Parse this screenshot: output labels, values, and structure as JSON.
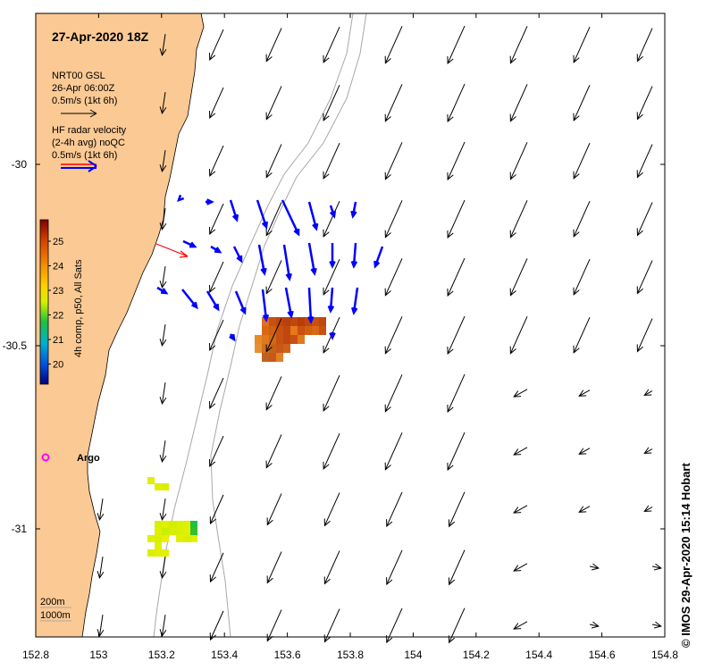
{
  "title": "27-Apr-2020 18Z",
  "legend": {
    "model_name": "NRT00 GSL",
    "model_time": "26-Apr 06:00Z",
    "model_scale": "0.5m/s (1kt 6h)",
    "radar_name": "HF radar velocity",
    "radar_desc": "(2-4h avg) noQC",
    "radar_scale": "0.5m/s (1kt 6h)"
  },
  "colorbar": {
    "label": "4h comp, p50, All Sats",
    "ticks": [
      "25",
      "24",
      "23",
      "22",
      "21",
      "20"
    ]
  },
  "argo": {
    "label": "Argo",
    "color": "#ff00ff"
  },
  "bathymetry": {
    "contour_1": "200m",
    "contour_2": "1000m"
  },
  "axes": {
    "x_ticks": [
      "152.8",
      "153",
      "153.2",
      "153.4",
      "153.6",
      "153.8",
      "154",
      "154.2",
      "154.4",
      "154.6",
      "154.8"
    ],
    "y_ticks": [
      "-30",
      "-30.5",
      "-31"
    ]
  },
  "credit": "IMOS 29-Apr-2020 15:14 Hobart",
  "colors": {
    "land": "#fbc993",
    "radar_arrow": "#0000ff",
    "argo_arrow": "#ff0000",
    "contour": "#a8a8a8"
  }
}
